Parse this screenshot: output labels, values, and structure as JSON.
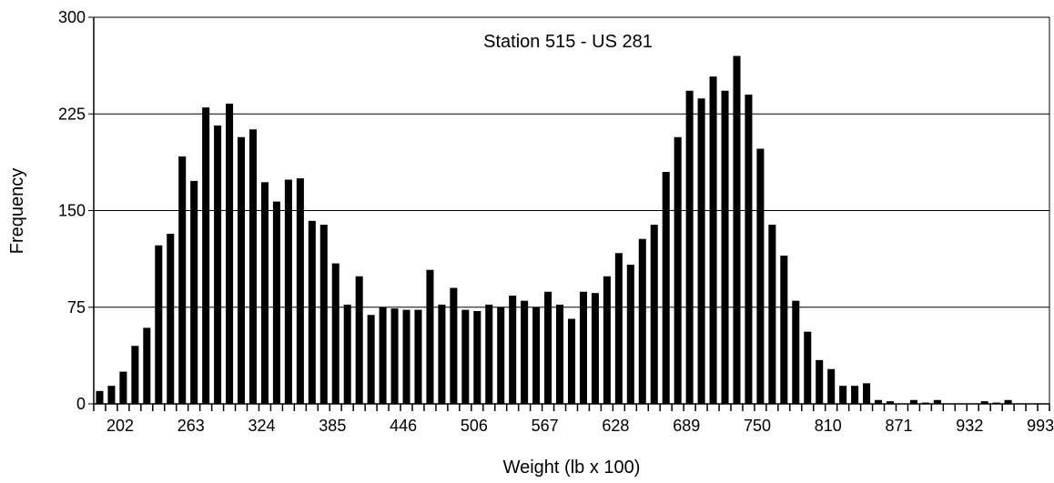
{
  "chart_data": {
    "type": "bar",
    "title": "Station 515 - US 281",
    "xlabel": "Weight (lb x 100)",
    "ylabel": "Frequency",
    "ylim": [
      0,
      300
    ],
    "yticks": [
      "0",
      "75",
      "150",
      "225",
      "300"
    ],
    "xtick_labels": [
      "202",
      "263",
      "324",
      "385",
      "446",
      "506",
      "567",
      "628",
      "689",
      "750",
      "810",
      "871",
      "932",
      "993"
    ],
    "grid": "horizontal",
    "values": [
      10,
      14,
      25,
      45,
      59,
      123,
      132,
      192,
      173,
      230,
      216,
      233,
      207,
      213,
      172,
      157,
      174,
      175,
      142,
      139,
      109,
      77,
      99,
      69,
      75,
      74,
      73,
      73,
      104,
      77,
      90,
      73,
      72,
      77,
      75,
      84,
      80,
      75,
      87,
      77,
      66,
      87,
      86,
      99,
      117,
      108,
      128,
      139,
      180,
      207,
      243,
      237,
      254,
      243,
      270,
      240,
      198,
      139,
      115,
      80,
      56,
      34,
      27,
      14,
      14,
      16,
      3,
      2,
      0,
      3,
      1,
      3,
      0,
      0,
      0,
      2,
      1,
      3,
      0,
      0,
      0
    ]
  }
}
